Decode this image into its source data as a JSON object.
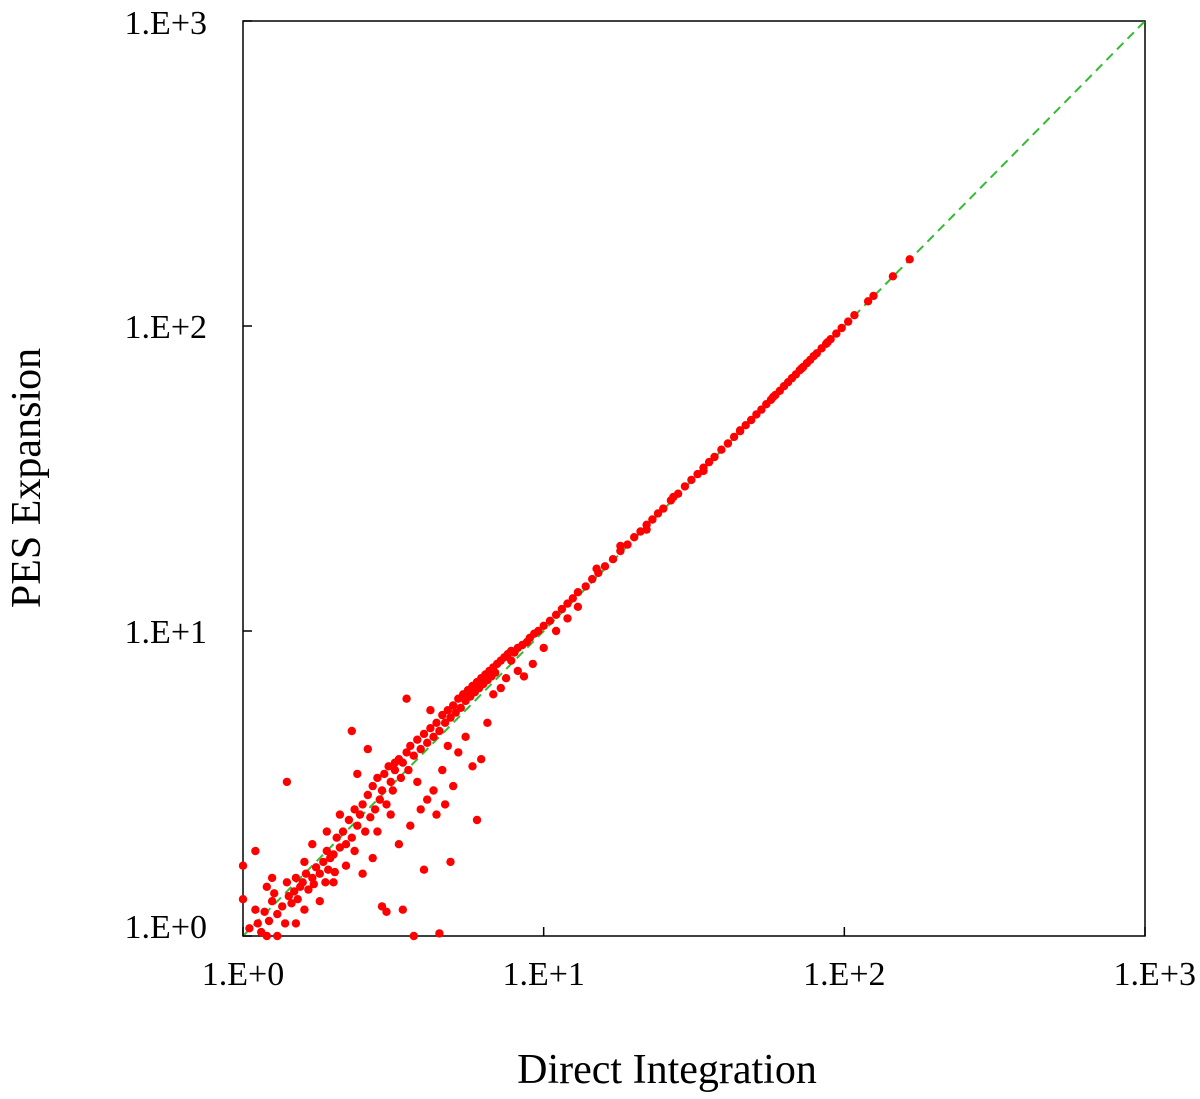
{
  "chart_data": {
    "type": "scatter",
    "xlabel": "Direct Integration",
    "ylabel": "PES Expansion",
    "x_scale": "log",
    "y_scale": "log",
    "xlim": [
      1,
      1000
    ],
    "ylim": [
      1,
      1000
    ],
    "x_ticks": [
      1,
      10,
      100,
      1000
    ],
    "y_ticks": [
      1,
      10,
      100,
      1000
    ],
    "x_tick_labels": [
      "1.E+0",
      "1.E+1",
      "1.E+2",
      "1.E+3"
    ],
    "y_tick_labels": [
      "1.E+0",
      "1.E+1",
      "1.E+2",
      "1.E+3"
    ],
    "grid": false,
    "legend": "none",
    "reference_line": {
      "style": "dashed",
      "color": "#33bb33",
      "from": [
        1,
        1
      ],
      "to": [
        1000,
        1000
      ]
    },
    "series": [
      {
        "color": "#ff0000",
        "points": [
          [
            1.0,
            1.7
          ],
          [
            1.0,
            1.32
          ],
          [
            1.05,
            1.06
          ],
          [
            1.1,
            1.22
          ],
          [
            1.12,
            1.1
          ],
          [
            1.15,
            1.03
          ],
          [
            1.18,
            1.2
          ],
          [
            1.2,
            1.45
          ],
          [
            1.22,
            1.12
          ],
          [
            1.25,
            1.3
          ],
          [
            1.27,
            1.38
          ],
          [
            1.3,
            1.0
          ],
          [
            1.3,
            1.18
          ],
          [
            1.35,
            1.25
          ],
          [
            1.38,
            1.1
          ],
          [
            1.4,
            1.5
          ],
          [
            1.42,
            1.35
          ],
          [
            1.45,
            1.28
          ],
          [
            1.48,
            1.4
          ],
          [
            1.5,
            1.55
          ],
          [
            1.52,
            1.32
          ],
          [
            1.55,
            1.45
          ],
          [
            1.58,
            1.5
          ],
          [
            1.6,
            1.22
          ],
          [
            1.62,
            1.6
          ],
          [
            1.65,
            1.42
          ],
          [
            1.7,
            1.55
          ],
          [
            1.72,
            1.48
          ],
          [
            1.75,
            1.68
          ],
          [
            1.8,
            1.6
          ],
          [
            1.85,
            1.75
          ],
          [
            1.88,
            1.5
          ],
          [
            1.9,
            1.9
          ],
          [
            1.92,
            1.65
          ],
          [
            1.95,
            1.8
          ],
          [
            2.0,
            1.85
          ],
          [
            2.02,
            1.62
          ],
          [
            2.05,
            2.1
          ],
          [
            2.1,
            1.95
          ],
          [
            2.15,
            2.2
          ],
          [
            2.2,
            2.0
          ],
          [
            2.25,
            2.4
          ],
          [
            2.3,
            2.1
          ],
          [
            2.35,
            2.6
          ],
          [
            2.4,
            2.3
          ],
          [
            2.45,
            2.5
          ],
          [
            2.5,
            2.7
          ],
          [
            2.55,
            2.2
          ],
          [
            2.6,
            2.9
          ],
          [
            2.65,
            2.45
          ],
          [
            2.7,
            3.1
          ],
          [
            2.75,
            2.6
          ],
          [
            2.8,
            3.3
          ],
          [
            2.85,
            2.8
          ],
          [
            2.9,
            3.0
          ],
          [
            2.95,
            3.4
          ],
          [
            3.0,
            2.7
          ],
          [
            3.05,
            3.6
          ],
          [
            3.1,
            3.2
          ],
          [
            3.15,
            3.0
          ],
          [
            3.2,
            3.5
          ],
          [
            3.3,
            3.8
          ],
          [
            3.35,
            3.3
          ],
          [
            3.4,
            3.7
          ],
          [
            3.5,
            4.0
          ],
          [
            3.55,
            3.5
          ],
          [
            3.6,
            4.2
          ],
          [
            3.7,
            3.9
          ],
          [
            3.8,
            4.4
          ],
          [
            3.9,
            4.1
          ],
          [
            4.0,
            4.6
          ],
          [
            4.1,
            4.3
          ],
          [
            4.2,
            4.8
          ],
          [
            4.3,
            4.5
          ],
          [
            4.4,
            5.0
          ],
          [
            4.5,
            4.7
          ],
          [
            4.6,
            5.3
          ],
          [
            4.7,
            5.0
          ],
          [
            4.8,
            5.5
          ],
          [
            4.9,
            5.2
          ],
          [
            5.0,
            5.7
          ],
          [
            5.1,
            5.4
          ],
          [
            5.2,
            6.0
          ],
          [
            5.3,
            5.6
          ],
          [
            5.4,
            6.2
          ],
          [
            5.5,
            5.9
          ],
          [
            5.6,
            6.4
          ],
          [
            5.7,
            6.1
          ],
          [
            5.8,
            6.6
          ],
          [
            5.9,
            6.3
          ],
          [
            6.0,
            6.8
          ],
          [
            6.1,
            6.5
          ],
          [
            6.2,
            7.0
          ],
          [
            6.3,
            6.7
          ],
          [
            6.4,
            7.2
          ],
          [
            6.5,
            6.9
          ],
          [
            6.6,
            7.4
          ],
          [
            6.7,
            7.1
          ],
          [
            6.8,
            7.6
          ],
          [
            6.9,
            7.3
          ],
          [
            7.0,
            7.8
          ],
          [
            7.2,
            8.0
          ],
          [
            7.4,
            8.2
          ],
          [
            7.6,
            8.4
          ],
          [
            7.8,
            8.6
          ],
          [
            8.0,
            8.5
          ],
          [
            8.2,
            8.8
          ],
          [
            8.5,
            9.0
          ],
          [
            8.8,
            9.2
          ],
          [
            9.0,
            9.5
          ],
          [
            9.3,
            9.8
          ],
          [
            9.6,
            10.0
          ],
          [
            10.0,
            10.4
          ],
          [
            10.5,
            10.8
          ],
          [
            11.0,
            11.3
          ],
          [
            11.5,
            11.8
          ],
          [
            12.0,
            12.3
          ],
          [
            12.5,
            12.8
          ],
          [
            13.0,
            13.4
          ],
          [
            13.8,
            14.0
          ],
          [
            14.5,
            14.8
          ],
          [
            15.2,
            15.5
          ],
          [
            16.0,
            16.3
          ],
          [
            17.0,
            17.2
          ],
          [
            18.0,
            18.3
          ],
          [
            19.0,
            19.2
          ],
          [
            20.0,
            20.3
          ],
          [
            21.0,
            21.2
          ],
          [
            22.0,
            22.3
          ],
          [
            23.0,
            23.2
          ],
          [
            24.0,
            24.3
          ],
          [
            25.0,
            25.2
          ],
          [
            26.5,
            26.8
          ],
          [
            28.0,
            28.2
          ],
          [
            29.5,
            29.8
          ],
          [
            31.0,
            31.3
          ],
          [
            32.5,
            32.7
          ],
          [
            34.0,
            34.3
          ],
          [
            35.5,
            35.8
          ],
          [
            37.0,
            37.2
          ],
          [
            39.0,
            39.3
          ],
          [
            41.0,
            41.2
          ],
          [
            43.0,
            43.3
          ],
          [
            45.0,
            45.2
          ],
          [
            47.0,
            47.3
          ],
          [
            49.0,
            49.2
          ],
          [
            51.0,
            51.3
          ],
          [
            53.0,
            53.2
          ],
          [
            55.0,
            55.4
          ],
          [
            57.0,
            57.3
          ],
          [
            59.0,
            59.4
          ],
          [
            61.0,
            61.3
          ],
          [
            63.0,
            63.5
          ],
          [
            65.0,
            65.4
          ],
          [
            67.0,
            67.5
          ],
          [
            69.0,
            69.4
          ],
          [
            71.0,
            71.6
          ],
          [
            73.0,
            73.4
          ],
          [
            75.0,
            75.5
          ],
          [
            77.0,
            77.4
          ],
          [
            79.0,
            79.6
          ],
          [
            81.0,
            81.4
          ],
          [
            84.0,
            84.5
          ],
          [
            87.0,
            87.4
          ],
          [
            90.0,
            90.5
          ],
          [
            94.0,
            94.4
          ],
          [
            98.0,
            98.5
          ],
          [
            103.0,
            103.4
          ],
          [
            108.0,
            108.5
          ],
          [
            120.0,
            120.5
          ],
          [
            125.0,
            125.5
          ],
          [
            145.0,
            145.5
          ],
          [
            165.0,
            165.5
          ],
          [
            1.1,
            1.9
          ],
          [
            1.2,
            1.0
          ],
          [
            1.25,
            1.55
          ],
          [
            1.4,
            3.2
          ],
          [
            1.5,
            1.1
          ],
          [
            1.6,
            1.75
          ],
          [
            1.7,
            2.0
          ],
          [
            1.8,
            1.3
          ],
          [
            1.9,
            2.2
          ],
          [
            2.0,
            1.5
          ],
          [
            2.1,
            2.5
          ],
          [
            2.2,
            1.7
          ],
          [
            2.3,
            4.7
          ],
          [
            2.35,
            1.9
          ],
          [
            2.4,
            3.4
          ],
          [
            2.5,
            1.6
          ],
          [
            2.6,
            4.1
          ],
          [
            2.7,
            1.8
          ],
          [
            2.8,
            2.2
          ],
          [
            2.9,
            1.25
          ],
          [
            3.0,
            1.2
          ],
          [
            3.1,
            2.5
          ],
          [
            3.2,
            3.7
          ],
          [
            3.3,
            2.0
          ],
          [
            3.4,
            1.22
          ],
          [
            3.5,
            6.0
          ],
          [
            3.6,
            2.3
          ],
          [
            3.7,
            1.0
          ],
          [
            3.8,
            3.2
          ],
          [
            3.9,
            2.6
          ],
          [
            4.0,
            1.65
          ],
          [
            4.1,
            2.8
          ],
          [
            4.2,
            5.5
          ],
          [
            4.3,
            3.0
          ],
          [
            4.4,
            2.5
          ],
          [
            4.5,
            1.02
          ],
          [
            4.6,
            3.5
          ],
          [
            4.7,
            2.7
          ],
          [
            4.8,
            4.2
          ],
          [
            4.9,
            1.75
          ],
          [
            5.0,
            3.1
          ],
          [
            5.2,
            4.0
          ],
          [
            5.5,
            4.5
          ],
          [
            5.8,
            3.6
          ],
          [
            6.0,
            2.4
          ],
          [
            6.2,
            3.8
          ],
          [
            6.5,
            5.0
          ],
          [
            6.8,
            6.2
          ],
          [
            7.2,
            6.5
          ],
          [
            7.5,
            7.0
          ],
          [
            7.8,
            8.0
          ],
          [
            8.2,
            7.4
          ],
          [
            8.6,
            7.1
          ],
          [
            9.2,
            7.8
          ],
          [
            10.0,
            8.8
          ],
          [
            11.0,
            10.0
          ],
          [
            12.0,
            11.0
          ],
          [
            13.0,
            12.0
          ],
          [
            15.0,
            16.0
          ],
          [
            18.0,
            19.0
          ],
          [
            22.0,
            21.5
          ],
          [
            27.0,
            27.5
          ],
          [
            34.0,
            33.5
          ],
          [
            45.0,
            45.5
          ],
          [
            58.0,
            58.5
          ],
          [
            72.0,
            72.5
          ],
          [
            88.0,
            88.5
          ]
        ]
      }
    ]
  }
}
